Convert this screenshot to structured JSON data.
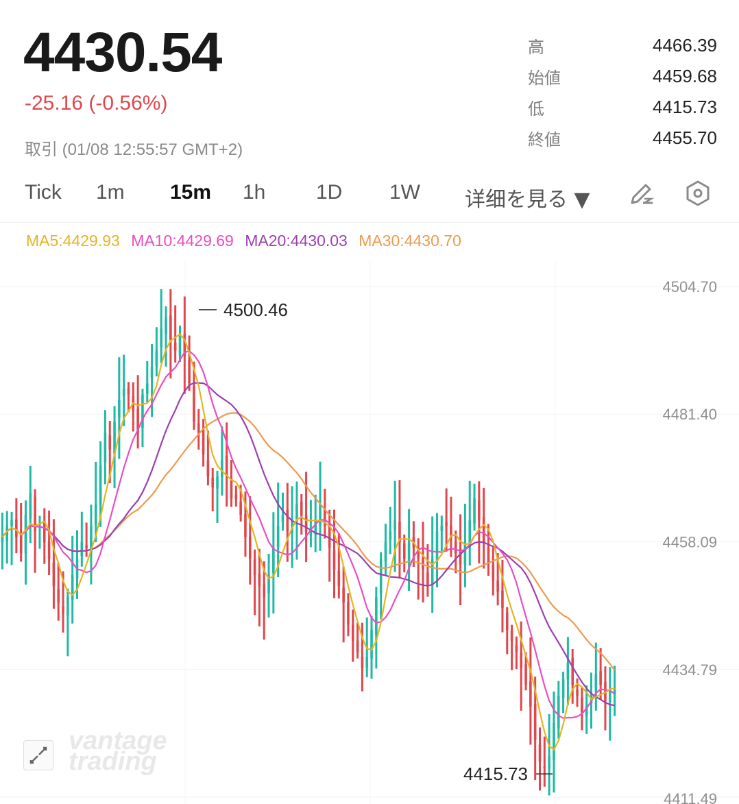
{
  "quote": {
    "price": "4430.54",
    "change": "-25.16 (-0.56%)",
    "trade_time": "取引 (01/08 12:55:57 GMT+2)"
  },
  "ohlc": [
    {
      "label": "高",
      "value": "4466.39"
    },
    {
      "label": "始値",
      "value": "4459.68"
    },
    {
      "label": "低",
      "value": "4415.73"
    },
    {
      "label": "終値",
      "value": "4455.70"
    }
  ],
  "tabs": [
    {
      "label": "Tick",
      "active": false
    },
    {
      "label": "1m",
      "active": false
    },
    {
      "label": "15m",
      "active": true
    },
    {
      "label": "1h",
      "active": false
    },
    {
      "label": "1D",
      "active": false
    },
    {
      "label": "1W",
      "active": false
    }
  ],
  "more_label": "详细を見る ▼",
  "icons": {
    "draw": "draw-pencil-icon",
    "settings": "settings-hexagon-icon",
    "expand": "expand-icon"
  },
  "ma_legend": [
    {
      "label": "MA5:4429.93",
      "color": "#e6b422"
    },
    {
      "label": "MA10:4429.69",
      "color": "#e84ec4"
    },
    {
      "label": "MA20:4430.03",
      "color": "#9b3fb0"
    },
    {
      "label": "MA30:4430.70",
      "color": "#ee9a4d"
    }
  ],
  "watermark": {
    "line1": "vantage",
    "line2": "trading"
  },
  "colors": {
    "up": "#1fb9a4",
    "down": "#e0474c",
    "ma5": "#e6b422",
    "ma10": "#e84ec4",
    "ma20": "#9b3fb0",
    "ma30": "#ee9a4d"
  },
  "chart_data": {
    "type": "candlestick",
    "y_ticks": [
      "4504.70",
      "4481.40",
      "4458.09",
      "4434.79",
      "4411.49"
    ],
    "ylim": [
      4411.49,
      4504.7
    ],
    "max_label": "4500.46",
    "min_label": "4415.73",
    "max_value": 4500.46,
    "min_value": 4415.73,
    "close_series": [
      4459,
      4461,
      4462,
      4459,
      4456,
      4463,
      4467,
      4460,
      4461,
      4458,
      4455,
      4450,
      4447,
      4445,
      4448,
      4452,
      4455,
      4458,
      4457,
      4461,
      4465,
      4472,
      4478,
      4475,
      4480,
      4484,
      4486,
      4485,
      4482,
      4478,
      4485,
      4487,
      4490,
      4493,
      4497,
      4499,
      4495,
      4493,
      4496,
      4492,
      4487,
      4480,
      4478,
      4474,
      4470,
      4468,
      4470,
      4473,
      4470,
      4466,
      4466,
      4463,
      4459,
      4455,
      4452,
      4450,
      4448,
      4452,
      4457,
      4461,
      4463,
      4460,
      4462,
      4465,
      4463,
      4460,
      4460,
      4462,
      4465,
      4461,
      4457,
      4453,
      4450,
      4447,
      4443,
      4440,
      4438,
      4435,
      4437,
      4442,
      4448,
      4455,
      4458,
      4460,
      4462,
      4458,
      4455,
      4458,
      4457,
      4455,
      4453,
      4450,
      4455,
      4460,
      4461,
      4461,
      4459,
      4456,
      4454,
      4458,
      4462,
      4466,
      4462,
      4458,
      4454,
      4451,
      4449,
      4446,
      4442,
      4440,
      4438,
      4435,
      4432,
      4428,
      4422,
      4418,
      4417,
      4419,
      4425,
      4430,
      4433,
      4436,
      4432,
      4430,
      4427,
      4428,
      4430,
      4434,
      4432,
      4429,
      4431,
      4431
    ]
  }
}
